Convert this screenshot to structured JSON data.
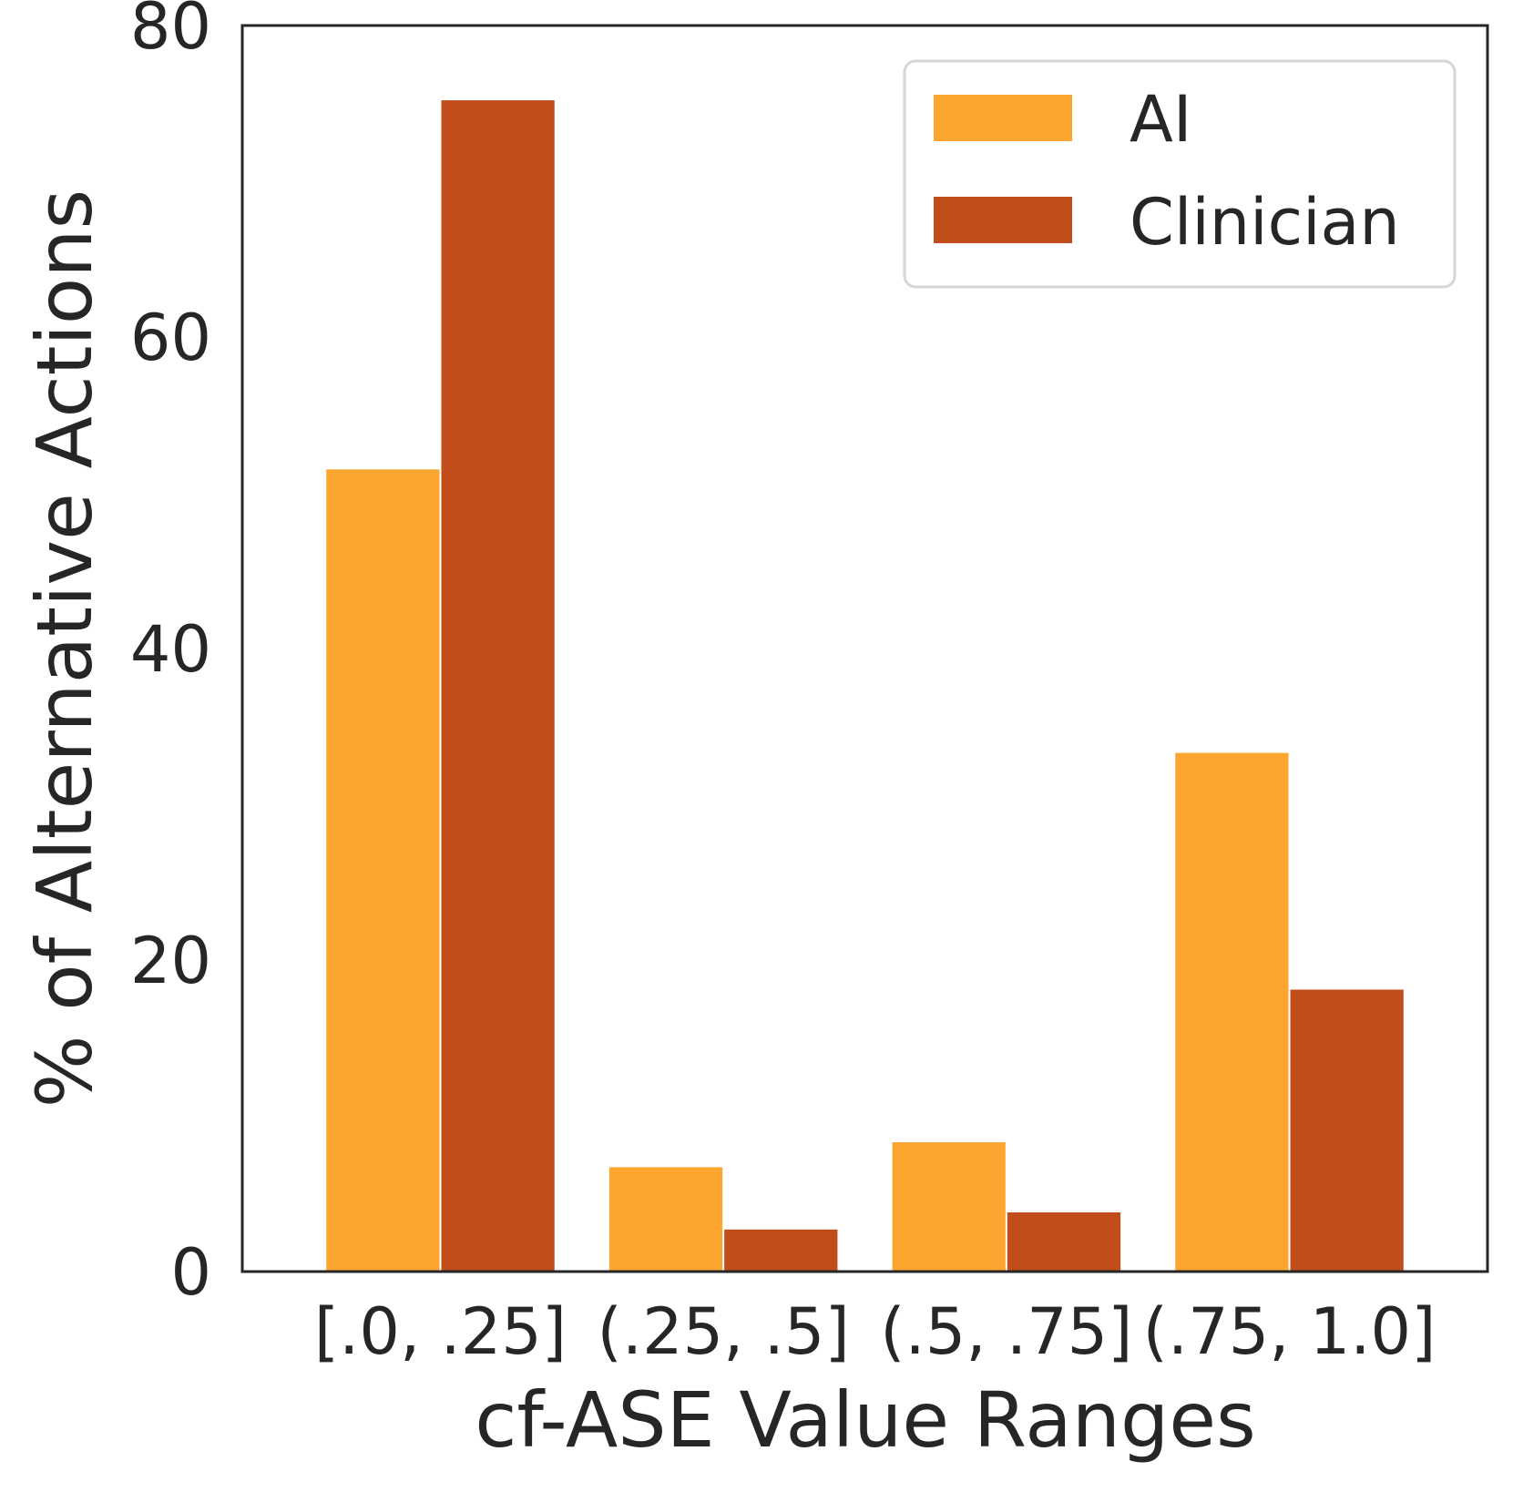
{
  "chart_data": {
    "type": "bar",
    "title": "",
    "xlabel": "cf-ASE Value Ranges",
    "ylabel": "% of Alternative Actions",
    "categories": [
      "[.0, .25]",
      "(.25, .5]",
      "(.5, .75]",
      "(.75, 1.0]"
    ],
    "series": [
      {
        "name": "AI",
        "color": "#fca630",
        "values": [
          51.5,
          6.7,
          8.3,
          33.3
        ]
      },
      {
        "name": "Clinician",
        "color": "#c14d1a",
        "values": [
          75.2,
          2.7,
          3.8,
          18.1
        ]
      }
    ],
    "ylim": [
      0,
      80
    ],
    "yticks": [
      0,
      20,
      40,
      60,
      80
    ],
    "ytick_labels": [
      "0",
      "20",
      "40",
      "60",
      "80"
    ],
    "grid": false,
    "legend_position": "top-right"
  }
}
